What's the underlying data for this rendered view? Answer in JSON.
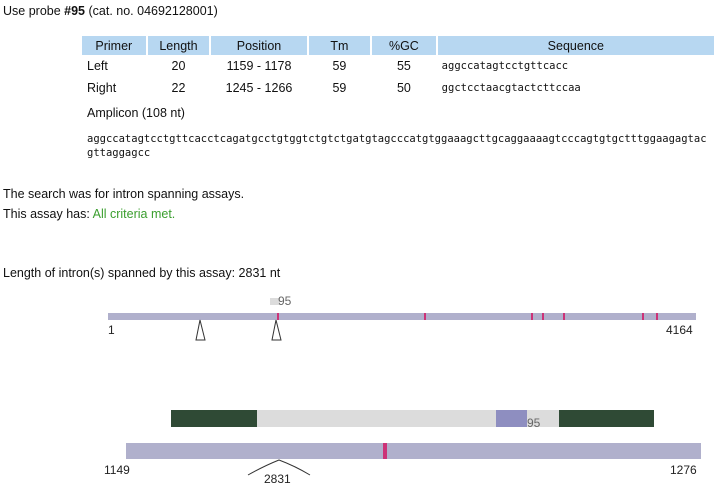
{
  "probe": {
    "prefix": "Use probe ",
    "number": "#95",
    "catalog": " (cat. no. 04692128001)"
  },
  "primer_table": {
    "headers": [
      "Primer",
      "Length",
      "Position",
      "Tm",
      "%GC",
      "Sequence"
    ],
    "rows": [
      {
        "primer": "Left",
        "length": "20",
        "position": "1159 - 1178",
        "tm": "59",
        "gc": "55",
        "sequence": "aggccatagtcctgttcacc"
      },
      {
        "primer": "Right",
        "length": "22",
        "position": "1245 - 1266",
        "tm": "59",
        "gc": "50",
        "sequence": "ggctcctaacgtactcttccaa"
      }
    ]
  },
  "amplicon": {
    "label": "Amplicon (108 nt)",
    "sequence": "aggccatagtcctgttcacctcagatgcctgtggtctgtctgatgtagcccatgtggaaagcttgcaggaaaagtcccagtgtgctttggaagagtacgttaggagcc"
  },
  "search_text": "The search was for intron spanning assays.",
  "assay": {
    "prefix": "This assay has: ",
    "status": "All criteria met."
  },
  "intron_text": "Length of intron(s) spanned by this assay: 2831 nt",
  "overview": {
    "probe_label": "95",
    "start_label": "1",
    "end_label": "4164"
  },
  "detail": {
    "probe_label": "95",
    "start_label": "1149",
    "end_label": "1276",
    "intron_label": "2831"
  },
  "colors": {
    "track": "#b0b0cc",
    "marker": "#cc3377",
    "primer_block": "#2f4a35",
    "probe_block": "#8e8ec0",
    "amplicon_bg": "#dcdcdc",
    "header_bg": "#b7d7f1",
    "criteria_text": "#3a9e2e"
  }
}
